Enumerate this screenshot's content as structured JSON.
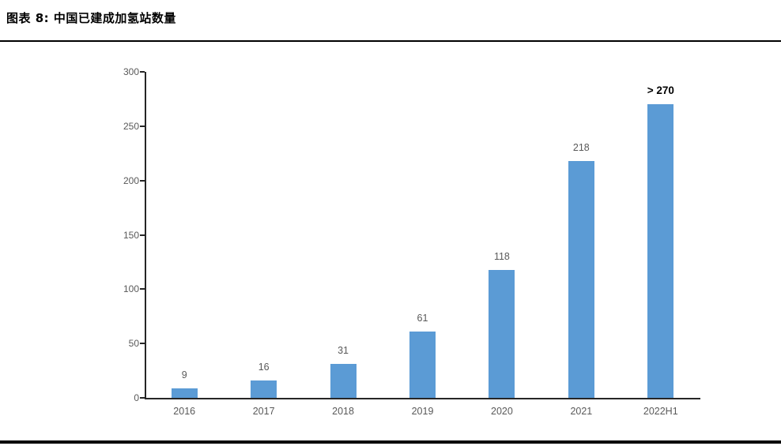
{
  "figure": {
    "full_title": "图表 8: 中国已建成加氢站数量"
  },
  "chart_data": {
    "type": "bar",
    "title": "中国已建成加氢站数量",
    "categories": [
      "2016",
      "2017",
      "2018",
      "2019",
      "2020",
      "2021",
      "2022H1"
    ],
    "values": [
      9,
      16,
      31,
      61,
      118,
      218,
      270
    ],
    "value_labels": [
      "9",
      "16",
      "31",
      "61",
      "118",
      "218",
      "> 270"
    ],
    "emphasized_label_index": 6,
    "xlabel": "",
    "ylabel": "",
    "ylim": [
      0,
      300
    ],
    "yticks": [
      0,
      50,
      100,
      150,
      200,
      250,
      300
    ],
    "grid": false,
    "legend": null,
    "bar_color": "#5B9BD5",
    "axis_color": "#262626",
    "tick_label_color": "#595959",
    "value_label_color": "#595959",
    "emphasized_label_color": "#000000"
  }
}
